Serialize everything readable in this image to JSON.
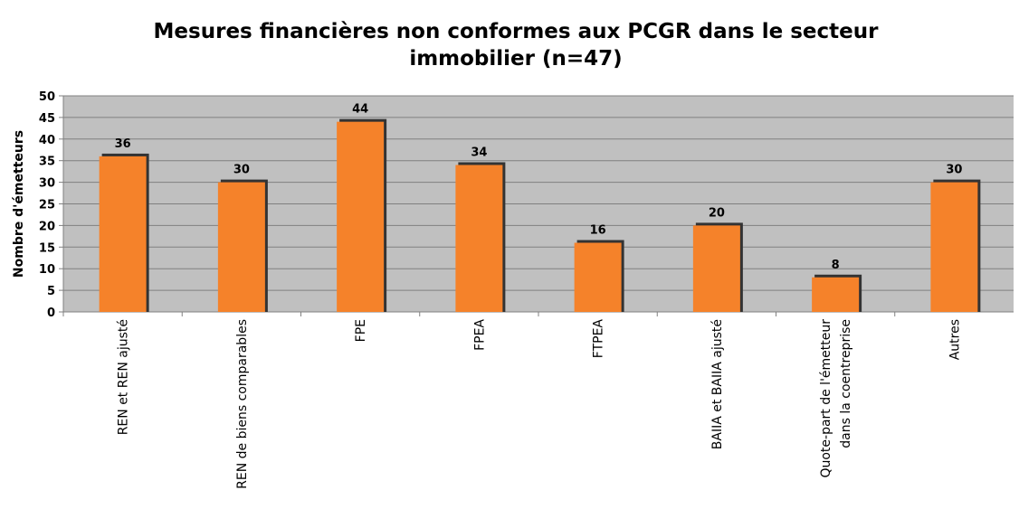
{
  "chart_data": {
    "type": "bar",
    "title": "Mesures financières non conformes aux PCGR dans le secteur immobilier (n=47)",
    "y_label": "Nombre d'émetteurs",
    "categories": [
      "REN et REN ajusté",
      "REN de biens comparables",
      "FPE",
      "FPEA",
      "FTPEA",
      "BAIIA et BAIIA ajusté",
      "Quote-part de l'émetteur dans la coentreprise",
      "Autres"
    ],
    "values": [
      36,
      30,
      44,
      34,
      16,
      20,
      8,
      30
    ],
    "color": "#f5822a",
    "ylim": [
      0,
      50
    ],
    "yticks": [
      0,
      5,
      10,
      15,
      20,
      25,
      30,
      35,
      40,
      45,
      50
    ],
    "grid": true
  }
}
